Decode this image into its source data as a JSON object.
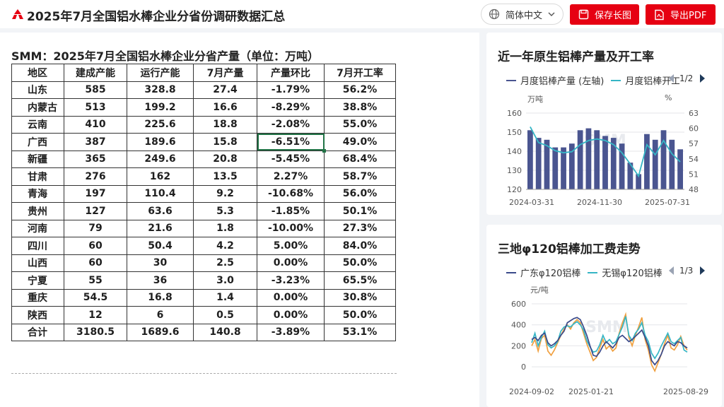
{
  "header": {
    "title": "2025年7月全国铝水棒企业分省份调研数据汇总",
    "language": "简体中文",
    "save_label": "保存长图",
    "pdf_label": "导出PDF"
  },
  "table": {
    "heading": "SMM：2025年7月全国铝水棒企业分省产量（单位：万吨）",
    "columns": [
      "地区",
      "建成产能",
      "运行产能",
      "7月产量",
      "产量环比",
      "7月开工率"
    ],
    "rows": [
      [
        "山东",
        "585",
        "328.8",
        "27.4",
        "-1.79%",
        "56.2%"
      ],
      [
        "内蒙古",
        "513",
        "199.2",
        "16.6",
        "-8.29%",
        "38.8%"
      ],
      [
        "云南",
        "410",
        "225.6",
        "18.8",
        "-2.08%",
        "55.0%"
      ],
      [
        "广西",
        "387",
        "189.6",
        "15.8",
        "-6.51%",
        "49.0%"
      ],
      [
        "新疆",
        "365",
        "249.6",
        "20.8",
        "-5.45%",
        "68.4%"
      ],
      [
        "甘肃",
        "276",
        "162",
        "13.5",
        "2.27%",
        "58.7%"
      ],
      [
        "青海",
        "197",
        "110.4",
        "9.2",
        "-10.68%",
        "56.0%"
      ],
      [
        "贵州",
        "127",
        "63.6",
        "5.3",
        "-1.85%",
        "50.1%"
      ],
      [
        "河南",
        "79",
        "21.6",
        "1.8",
        "-10.00%",
        "27.3%"
      ],
      [
        "四川",
        "60",
        "50.4",
        "4.2",
        "5.00%",
        "84.0%"
      ],
      [
        "山西",
        "60",
        "30",
        "2.5",
        "0.00%",
        "50.0%"
      ],
      [
        "宁夏",
        "55",
        "36",
        "3.0",
        "-3.23%",
        "65.5%"
      ],
      [
        "重庆",
        "54.5",
        "16.8",
        "1.4",
        "0.00%",
        "30.8%"
      ],
      [
        "陕西",
        "12",
        "6",
        "0.5",
        "0.00%",
        "50.0%"
      ],
      [
        "合计",
        "3180.5",
        "1689.6",
        "140.8",
        "-3.89%",
        "53.1%"
      ]
    ]
  },
  "card1": {
    "title": "近一年原生铝棒产量及开工率",
    "legend": [
      "月度铝棒产量 (左轴)",
      "月度铝棒开工率 (右轴)"
    ],
    "pager": "1/2",
    "unit_left": "万吨",
    "unit_right": "%"
  },
  "card2": {
    "title": "三地φ120铝棒加工费走势",
    "legend": [
      "广东φ120铝棒",
      "无锡φ120铝棒"
    ],
    "pager": "1/3",
    "unit_left": "元/吨"
  },
  "colors": {
    "brand_red": "#e60012",
    "bar_navy": "#4a5590",
    "rate_teal": "#35b5c5",
    "gd_navy": "#3a4a8a",
    "wx_teal": "#35b5c5",
    "third_orange": "#f0a040"
  },
  "chart_data": [
    {
      "type": "bar",
      "title": "近一年原生铝棒产量及开工率",
      "ylabel": "万吨",
      "ylim": [
        120,
        160
      ],
      "y2label": "%",
      "y2lim": [
        48,
        63
      ],
      "x_ticks": [
        "2024-03-31",
        "2024-11-30",
        "2025-07-31"
      ],
      "y_ticks": [
        "120",
        "130",
        "140",
        "150",
        "160"
      ],
      "y2_ticks": [
        "48",
        "51",
        "54",
        "57",
        "60",
        "63"
      ],
      "series": [
        {
          "name": "月度铝棒产量 (左轴)",
          "type": "bar",
          "values": [
            151,
            147,
            146,
            142,
            142,
            144,
            151,
            152,
            151,
            148,
            147,
            144,
            134,
            128,
            149,
            146,
            151,
            146,
            141
          ]
        },
        {
          "name": "月度铝棒开工率 (右轴)",
          "type": "line",
          "axis": "right",
          "values": [
            60.3,
            57.2,
            56.6,
            55.6,
            55.2,
            55.4,
            56.8,
            57.6,
            57.9,
            57.6,
            56.8,
            55.2,
            53.0,
            50.6,
            56.8,
            54.8,
            57.6,
            55.0,
            53.4
          ]
        }
      ]
    },
    {
      "type": "line",
      "title": "三地φ120铝棒加工费走势",
      "ylabel": "元/吨",
      "ylim": [
        -100,
        600
      ],
      "x_ticks": [
        "2024-09-02",
        "2025-01-21",
        "2025-08-29"
      ],
      "y_ticks": [
        "0",
        "200",
        "400",
        "600"
      ],
      "series": [
        {
          "name": "广东φ120铝棒",
          "values": [
            260,
            280,
            250,
            300,
            320,
            230,
            200,
            220,
            250,
            300,
            340,
            420,
            440,
            460,
            470,
            450,
            380,
            300,
            200,
            110,
            100,
            140,
            200,
            240,
            210,
            180,
            220,
            280,
            300,
            270,
            240,
            260,
            290,
            320,
            350,
            280,
            200,
            60,
            20,
            60,
            120,
            200,
            240,
            220,
            200,
            240,
            230,
            200,
            180
          ]
        },
        {
          "name": "无锡φ120铝棒",
          "values": [
            230,
            320,
            200,
            280,
            340,
            210,
            180,
            200,
            240,
            340,
            380,
            390,
            380,
            410,
            430,
            400,
            350,
            250,
            190,
            140,
            150,
            210,
            300,
            230,
            260,
            220,
            240,
            310,
            380,
            480,
            300,
            250,
            320,
            360,
            420,
            300,
            240,
            130,
            80,
            130,
            200,
            260,
            320,
            240,
            220,
            250,
            280,
            160,
            140
          ]
        },
        {
          "name": "third",
          "values": [
            200,
            260,
            150,
            270,
            300,
            150,
            110,
            160,
            230,
            300,
            360,
            400,
            360,
            420,
            450,
            420,
            320,
            220,
            140,
            60,
            90,
            180,
            260,
            170,
            200,
            150,
            180,
            320,
            420,
            500,
            280,
            200,
            300,
            380,
            470,
            260,
            160,
            20,
            -40,
            40,
            120,
            220,
            300,
            180,
            160,
            210,
            290,
            200,
            160
          ]
        }
      ]
    }
  ]
}
